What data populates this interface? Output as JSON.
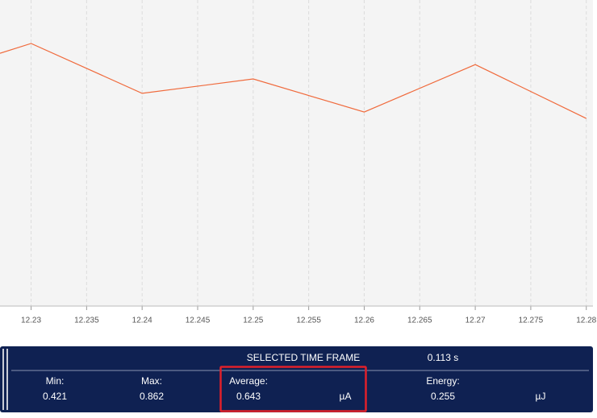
{
  "chart_data": {
    "type": "line",
    "x": [
      12.2272,
      12.23,
      12.24,
      12.25,
      12.26,
      12.27,
      12.28
    ],
    "series": [
      {
        "color": "#f06a3c",
        "values": [
          0.826,
          0.858,
          0.695,
          0.742,
          0.634,
          0.789,
          0.613
        ]
      }
    ],
    "xlim": [
      12.2272,
      12.2806
    ],
    "xticks": [
      12.23,
      12.235,
      12.24,
      12.245,
      12.25,
      12.255,
      12.26,
      12.265,
      12.27,
      12.275,
      12.28
    ],
    "ylim": [
      0,
      1
    ],
    "grid": true
  },
  "panel": {
    "title": "SELECTED TIME FRAME",
    "duration": "0.113 s",
    "min": {
      "label": "Min:",
      "value": "0.421"
    },
    "max": {
      "label": "Max:",
      "value": "0.862"
    },
    "average": {
      "label": "Average:",
      "value": "0.643",
      "unit": "µA"
    },
    "energy": {
      "label": "Energy:",
      "value": "0.255",
      "unit": "µJ"
    }
  }
}
